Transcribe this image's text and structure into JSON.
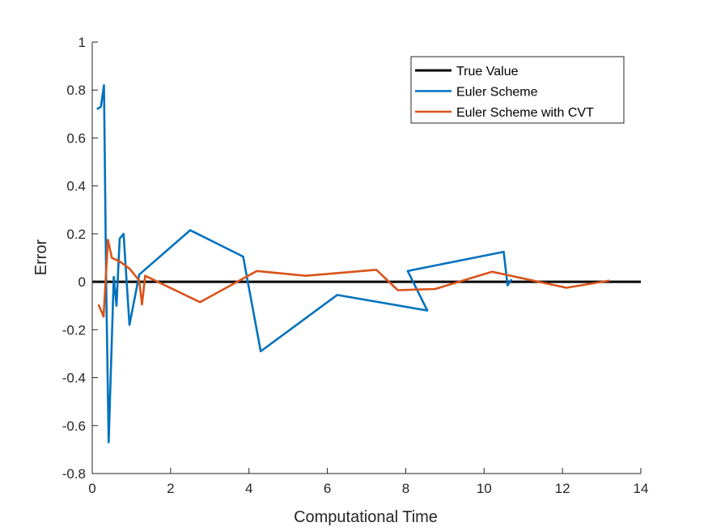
{
  "chart_data": {
    "type": "line",
    "title": "",
    "xlabel": "Computational Time",
    "ylabel": "Error",
    "xlim": [
      0,
      14
    ],
    "ylim": [
      -0.8,
      1
    ],
    "xticks": [
      "0",
      "2",
      "4",
      "6",
      "8",
      "10",
      "12",
      "14"
    ],
    "yticks": [
      "-0.8",
      "-0.6",
      "-0.4",
      "-0.2",
      "0",
      "0.2",
      "0.4",
      "0.6",
      "0.8",
      "1"
    ],
    "grid": false,
    "legend_position": "top-right",
    "series": [
      {
        "name": "True Value",
        "color": "#000000",
        "points": [
          [
            0,
            0
          ],
          [
            14,
            0
          ]
        ]
      },
      {
        "name": "Euler Scheme",
        "color": "#0072BD",
        "points": [
          [
            0.12,
            0.72
          ],
          [
            0.22,
            0.73
          ],
          [
            0.3,
            0.82
          ],
          [
            0.36,
            -0.05
          ],
          [
            0.42,
            -0.67
          ],
          [
            0.55,
            0.02
          ],
          [
            0.62,
            -0.1
          ],
          [
            0.7,
            0.18
          ],
          [
            0.8,
            0.2
          ],
          [
            0.95,
            -0.18
          ],
          [
            1.2,
            0.03
          ],
          [
            2.5,
            0.215
          ],
          [
            3.85,
            0.105
          ],
          [
            4.3,
            -0.29
          ],
          [
            6.25,
            -0.055
          ],
          [
            8.55,
            -0.12
          ],
          [
            8.05,
            0.045
          ],
          [
            10.5,
            0.125
          ],
          [
            10.6,
            -0.015
          ],
          [
            10.7,
            0.01
          ]
        ]
      },
      {
        "name": "Euler Scheme with CVT",
        "color": "#D95319",
        "points": [
          [
            0.16,
            -0.095
          ],
          [
            0.29,
            -0.145
          ],
          [
            0.4,
            0.175
          ],
          [
            0.5,
            0.1
          ],
          [
            0.7,
            0.085
          ],
          [
            0.95,
            0.055
          ],
          [
            1.2,
            0.005
          ],
          [
            1.27,
            -0.095
          ],
          [
            1.35,
            0.025
          ],
          [
            2.75,
            -0.085
          ],
          [
            4.2,
            0.045
          ],
          [
            5.45,
            0.025
          ],
          [
            7.25,
            0.05
          ],
          [
            7.8,
            -0.035
          ],
          [
            8.75,
            -0.03
          ],
          [
            10.2,
            0.042
          ],
          [
            12.1,
            -0.025
          ],
          [
            13.2,
            0.005
          ]
        ]
      }
    ]
  }
}
